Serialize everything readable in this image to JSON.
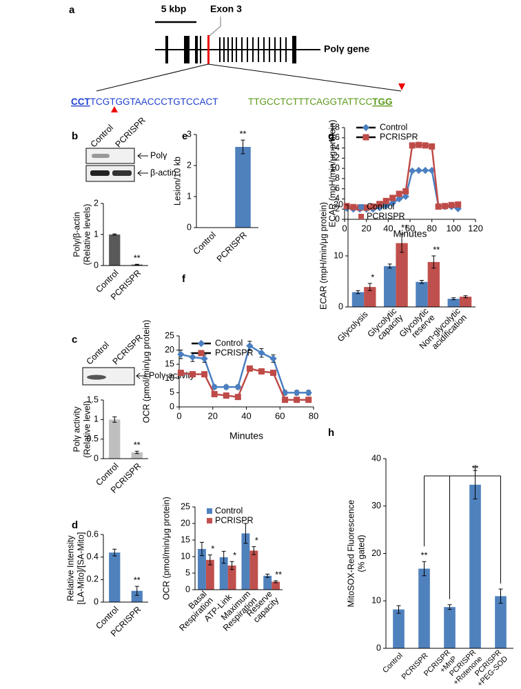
{
  "panel_labels": {
    "a": "a",
    "b": "b",
    "c": "c",
    "d": "d",
    "e": "e",
    "f": "f",
    "g": "g",
    "h": "h"
  },
  "gene": {
    "scale": "5 kbp",
    "exon": "Exon 3",
    "gene_name": "Polγ gene",
    "seq1": [
      "CCT",
      "TCGTGGTAACCCTGTCCACT"
    ],
    "seq2": [
      "TTGCCTCTTTCAGGTATTCC",
      "TGG"
    ]
  },
  "blots": {
    "b": {
      "lanes": [
        "Control",
        "PCRISPR"
      ],
      "rows": [
        "Polγ",
        "β-actin"
      ]
    },
    "c": {
      "lanes": [
        "Control",
        "PCRISPR"
      ],
      "rows": [
        "Polγ activity"
      ]
    }
  },
  "chart_data": [
    {
      "type": "bar",
      "ylabel": [
        "Polγ/β-actin",
        "(Relative levels)"
      ],
      "categories": [
        "Control",
        "PCRISPR"
      ],
      "values": [
        1.0,
        0.03
      ],
      "errors": [
        0.02,
        0.01
      ],
      "annotations": [
        null,
        "**"
      ],
      "color": "#595959",
      "ylim": [
        0,
        2
      ],
      "yticks": [
        0,
        1,
        2
      ]
    },
    {
      "type": "bar",
      "ylabel": [
        "Polγ activity",
        "(Relative level)"
      ],
      "categories": [
        "Control",
        "PCRISPR"
      ],
      "values": [
        1.0,
        0.16
      ],
      "errors": [
        0.07,
        0.03
      ],
      "annotations": [
        null,
        "**"
      ],
      "color": "#bfbfbf",
      "ylim": [
        0,
        1.5
      ],
      "yticks": [
        0,
        0.5,
        1,
        1.5
      ]
    },
    {
      "type": "bar",
      "ylabel": [
        "Relative Intensity",
        "[LA-Mito]/[SA-Mito]"
      ],
      "categories": [
        "Control",
        "PCRISPR"
      ],
      "values": [
        0.44,
        0.1
      ],
      "errors": [
        0.03,
        0.04
      ],
      "annotations": [
        null,
        "**"
      ],
      "color": "#4f81bd",
      "ylim": [
        0,
        0.6
      ],
      "yticks": [
        0,
        0.2,
        0.4,
        0.6
      ]
    },
    {
      "type": "bar",
      "ylabel": "Lesion/10 kb",
      "categories": [
        "Control",
        "PCRISPR"
      ],
      "values": [
        0,
        2.6
      ],
      "errors": [
        0,
        0.22
      ],
      "annotations": [
        null,
        "**"
      ],
      "color": "#4f81bd",
      "ylim": [
        0,
        3
      ],
      "yticks": [
        0,
        1,
        2,
        3
      ]
    },
    {
      "type": "line",
      "ylabel": "OCR (pmol/min/μg protein)",
      "xlabel": "Minutes",
      "x": [
        1,
        8,
        15,
        21,
        28,
        35,
        42,
        49,
        56,
        63,
        70,
        77
      ],
      "series": [
        {
          "name": "Control",
          "color": "#4a7fc1",
          "marker": "diamond",
          "values": [
            18.5,
            17.5,
            17,
            7,
            7,
            7,
            21.5,
            19,
            17,
            5,
            5,
            5
          ],
          "errors": [
            1.5,
            1.5,
            1.3,
            0.7,
            0.7,
            0.7,
            1.6,
            1.5,
            1.3,
            0.8,
            0.8,
            0.8
          ]
        },
        {
          "name": "PCRISPR",
          "color": "#be4b48",
          "marker": "square",
          "values": [
            12,
            11.5,
            11.5,
            4.5,
            4,
            3.5,
            13.5,
            12.5,
            12,
            2.5,
            2.5,
            2.5
          ]
        }
      ],
      "xlim": [
        0,
        80
      ],
      "xticks": [
        0,
        20,
        40,
        60,
        80
      ],
      "ylim": [
        0,
        25
      ],
      "yticks": [
        0,
        5,
        10,
        15,
        20,
        25
      ]
    },
    {
      "type": "bar",
      "ylabel": "OCR (pmol/min/μg protein)",
      "categories": [
        [
          "Basal",
          "Respiration"
        ],
        "ATP-Link",
        [
          "Maximum",
          "Respiration"
        ],
        [
          "Reserve",
          "capacity"
        ]
      ],
      "series": [
        {
          "name": "Control",
          "color": "#4f81bd",
          "values": [
            12.3,
            9.8,
            17,
            4.2
          ],
          "errors": [
            2,
            1.8,
            3,
            0.5
          ]
        },
        {
          "name": "PCRISPR",
          "color": "#c0504d",
          "values": [
            9,
            7.3,
            11.8,
            2.4
          ],
          "errors": [
            1.5,
            1.2,
            1.2,
            0.3
          ]
        }
      ],
      "annotations": [
        "*",
        "*",
        "*",
        "**"
      ],
      "ylim": [
        0,
        25
      ],
      "yticks": [
        0,
        5,
        10,
        15,
        20,
        25
      ]
    },
    {
      "type": "line",
      "ylabel": "ECAR (mpH/min/μg protein)",
      "xlabel": "Minutes",
      "x": [
        2,
        8,
        14,
        20,
        26,
        32,
        38,
        44,
        50,
        56,
        62,
        68,
        74,
        80,
        86,
        92,
        98,
        104
      ],
      "series": [
        {
          "name": "Control",
          "color": "#4a7fc1",
          "marker": "diamond",
          "values": [
            2.2,
            2,
            2,
            2,
            2,
            2.3,
            2.6,
            3.2,
            4,
            4.5,
            9.5,
            9.6,
            9.6,
            9.6,
            2.6,
            2.5,
            2.5,
            2.1
          ]
        },
        {
          "name": "PCRISPR",
          "color": "#be4b48",
          "marker": "square",
          "values": [
            2.6,
            2.4,
            2.3,
            2.3,
            2.5,
            3,
            3.6,
            4.2,
            5,
            5.5,
            14.5,
            14.6,
            14.5,
            14.3,
            2.5,
            2.6,
            2.8,
            2.9
          ]
        }
      ],
      "xlim": [
        0,
        120
      ],
      "xticks": [
        0,
        20,
        40,
        60,
        80,
        100,
        120
      ],
      "ylim": [
        0,
        18
      ],
      "yticks": [
        0,
        2,
        4,
        6,
        8,
        10,
        12,
        14,
        16,
        18
      ]
    },
    {
      "type": "bar",
      "ylabel": "ECAR (mpH/min/μg protein)",
      "categories": [
        "Glycolysis",
        [
          "Glycolytic",
          "capacity"
        ],
        [
          "Glycolytic",
          "reserve"
        ],
        [
          "Non-glycolytic",
          "acidification"
        ]
      ],
      "series": [
        {
          "name": "Control",
          "color": "#4f81bd",
          "values": [
            2.9,
            8,
            4.9,
            1.6
          ],
          "errors": [
            0.3,
            0.4,
            0.3,
            0.2
          ]
        },
        {
          "name": "PCRISPR",
          "color": "#c0504d",
          "values": [
            3.9,
            12.5,
            8.8,
            2
          ],
          "errors": [
            0.7,
            1.8,
            1.2,
            0.2
          ]
        }
      ],
      "annotations": [
        "*",
        "**",
        "**",
        null
      ],
      "ylim": [
        0,
        20
      ],
      "yticks": [
        0,
        10,
        20
      ]
    },
    {
      "type": "bar",
      "ylabel": [
        "MitoSOX-Red Fluorescence",
        "(% gated)"
      ],
      "categories": [
        "Control",
        "PCRISPR",
        [
          "PCRISPR",
          "+MnP"
        ],
        [
          "PCRISPR",
          "+Rotenone"
        ],
        [
          "PCRISPR",
          "+PEG-SOD"
        ]
      ],
      "values": [
        8.2,
        16.8,
        8.7,
        34.5,
        11
      ],
      "errors": [
        0.8,
        1.5,
        0.5,
        3,
        1.5
      ],
      "annotations": [
        null,
        "**",
        null,
        null,
        null
      ],
      "bracket_label": "**",
      "color": "#4f81bd",
      "ylim": [
        0,
        40
      ],
      "yticks": [
        0,
        10,
        20,
        30,
        40
      ]
    }
  ]
}
